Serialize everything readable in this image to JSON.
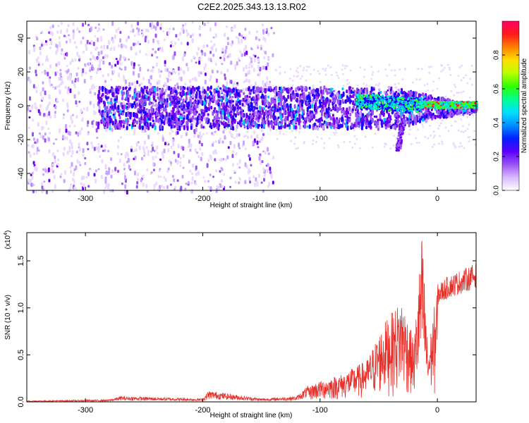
{
  "title": "C2E2.2025.343.13.13.R02",
  "colors": {
    "snr_line": "#e8302a",
    "heatmap_palette": [
      "#ffffff",
      "#ead9ff",
      "#c9a3ff",
      "#9a52f5",
      "#6a00ee",
      "#1a00ff",
      "#0060ff",
      "#00c8ff",
      "#00ffaa",
      "#40ff00",
      "#c8ff00",
      "#ffe000",
      "#ff8000",
      "#ff2020",
      "#ff0066"
    ]
  },
  "chart_data": [
    {
      "type": "heatmap",
      "xlabel": "Height of straight line (km)",
      "ylabel": "Frequency (Hz)",
      "xlim": [
        -350,
        33
      ],
      "ylim": [
        -50,
        50
      ],
      "x_ticks": [
        -300,
        -200,
        -100,
        0
      ],
      "y_ticks": [
        -40,
        -20,
        0,
        20,
        40
      ],
      "colorbar": {
        "label": "Normalized spectral amplitude",
        "range": [
          0,
          1
        ],
        "ticks": [
          "0.0",
          "0.2",
          "0.4",
          "0.6",
          "0.8"
        ],
        "tick_values": [
          0,
          0.2,
          0.4,
          0.6,
          0.8
        ]
      },
      "features": [
        {
          "kind": "band",
          "x_from": -290,
          "x_to": 33,
          "center_hz": 0,
          "half_width_hz": 12,
          "intensity": 0.3
        },
        {
          "kind": "scatter",
          "x_from": -350,
          "x_to": -140,
          "freq_range": [
            -50,
            50
          ],
          "intensity": 0.1
        },
        {
          "kind": "strong",
          "x_from": -70,
          "x_to": -15,
          "center_hz": 2,
          "half_width_hz": 6,
          "intensity": 0.45
        },
        {
          "kind": "peak",
          "x_from": -15,
          "x_to": 33,
          "center_hz": 1,
          "half_width_hz": 2,
          "intensity": 0.8
        }
      ]
    },
    {
      "type": "line",
      "xlabel": "Height of straight line (km)",
      "ylabel": "SNR (10 * v/v)",
      "y_multiplier": "(x10",
      "y_multiplier_exp": "4",
      "y_multiplier_close": ")",
      "xlim": [
        -350,
        33
      ],
      "ylim": [
        0,
        1.8
      ],
      "x_ticks": [
        -300,
        -200,
        -100,
        0
      ],
      "y_ticks": [
        "0.0",
        "0.5",
        "1.0",
        "1.5"
      ],
      "y_tick_values": [
        0,
        0.5,
        1.0,
        1.5
      ],
      "envelope": [
        {
          "x": -350,
          "y": 0.01
        },
        {
          "x": -280,
          "y": 0.02
        },
        {
          "x": -270,
          "y": 0.05
        },
        {
          "x": -200,
          "y": 0.03
        },
        {
          "x": -195,
          "y": 0.1
        },
        {
          "x": -150,
          "y": 0.03
        },
        {
          "x": -120,
          "y": 0.05
        },
        {
          "x": -105,
          "y": 0.2
        },
        {
          "x": -80,
          "y": 0.3
        },
        {
          "x": -60,
          "y": 0.45
        },
        {
          "x": -45,
          "y": 0.85
        },
        {
          "x": -30,
          "y": 1.1
        },
        {
          "x": -20,
          "y": 0.65
        },
        {
          "x": -13,
          "y": 1.8
        },
        {
          "x": -8,
          "y": 0.55
        },
        {
          "x": 0,
          "y": 1.25
        },
        {
          "x": 10,
          "y": 1.35
        },
        {
          "x": 20,
          "y": 1.4
        },
        {
          "x": 33,
          "y": 1.48
        }
      ]
    }
  ]
}
